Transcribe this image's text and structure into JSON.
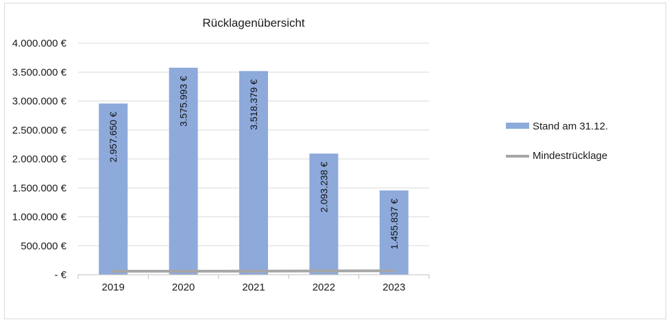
{
  "chart_data": {
    "type": "bar",
    "title": "Rücklagenübersicht",
    "categories": [
      "2019",
      "2020",
      "2021",
      "2022",
      "2023"
    ],
    "series": [
      {
        "name": "Stand am 31.12.",
        "kind": "bar",
        "color": "#8eaadb",
        "values": [
          2957650,
          3575993,
          3518379,
          2093238,
          1455837
        ],
        "labels": [
          "2.957.650 €",
          "3.575.993 €",
          "3.518.379 €",
          "2.093.238 €",
          "1.455.837 €"
        ]
      },
      {
        "name": "Mindestrücklage",
        "kind": "line",
        "color": "#a6a6a6",
        "values": [
          60000,
          60000,
          62000,
          65000,
          68000
        ]
      }
    ],
    "ylim": [
      0,
      4000000
    ],
    "yticks": [
      0,
      500000,
      1000000,
      1500000,
      2000000,
      2500000,
      3000000,
      3500000,
      4000000
    ],
    "ytick_labels": [
      "-  €",
      "500.000 €",
      "1.000.000 €",
      "1.500.000 €",
      "2.000.000 €",
      "2.500.000 €",
      "3.000.000 €",
      "3.500.000 €",
      "4.000.000 €"
    ],
    "xlabel": "",
    "ylabel": "",
    "grid": true,
    "legend_position": "right"
  }
}
